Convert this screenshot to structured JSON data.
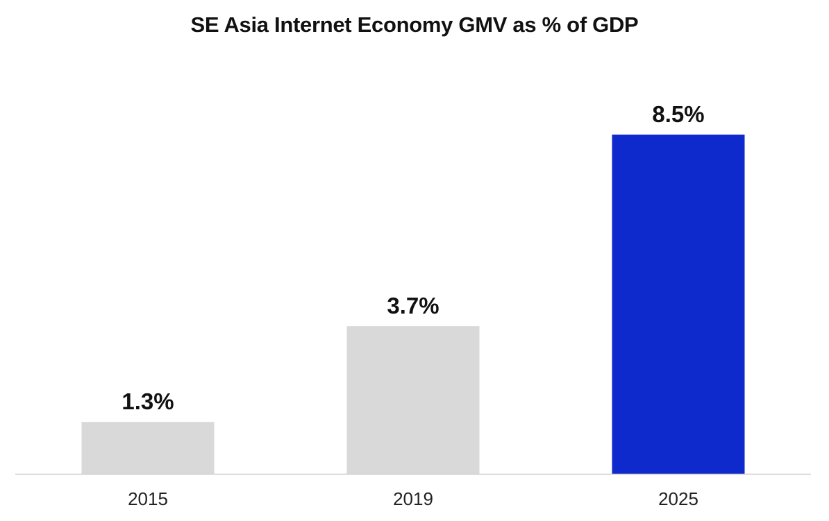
{
  "chart_data": {
    "type": "bar",
    "title": "SE Asia Internet Economy GMV as % of GDP",
    "xlabel": "",
    "ylabel": "",
    "categories": [
      "2015",
      "2019",
      "2025"
    ],
    "values": [
      1.3,
      3.7,
      8.5
    ],
    "data_labels": [
      "1.3%",
      "3.7%",
      "8.5%"
    ],
    "ylim": [
      0,
      9.3
    ],
    "grid": false,
    "legend": "none",
    "bar_colors": [
      "#d9d9d9",
      "#d9d9d9",
      "#0e2acc"
    ],
    "baseline_color": "#cccccc"
  }
}
